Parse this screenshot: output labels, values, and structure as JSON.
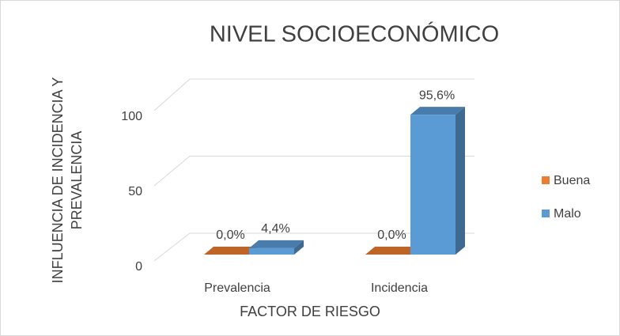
{
  "chart_data": {
    "type": "bar3d",
    "title": "NIVEL SOCIOECONÓMICO",
    "xlabel": "FACTOR DE RIESGO",
    "ylabel": [
      "INFLUENCIA DE INCIDENCIA Y",
      "PREVALENCIA"
    ],
    "categories": [
      "Prevalencia",
      "Incidencia"
    ],
    "series": [
      {
        "name": "Buena",
        "color": "#ED7D31",
        "values": [
          0,
          0
        ],
        "value_labels": [
          "0,0%",
          "0,0%"
        ]
      },
      {
        "name": "Malo",
        "color": "#5B9BD5",
        "values": [
          4.4,
          95.6
        ],
        "value_labels": [
          "4,4%",
          "95,6%"
        ]
      }
    ],
    "ylim": [
      0,
      100
    ],
    "yticks": [
      0,
      50,
      100
    ],
    "grid": true,
    "legend": "right"
  }
}
